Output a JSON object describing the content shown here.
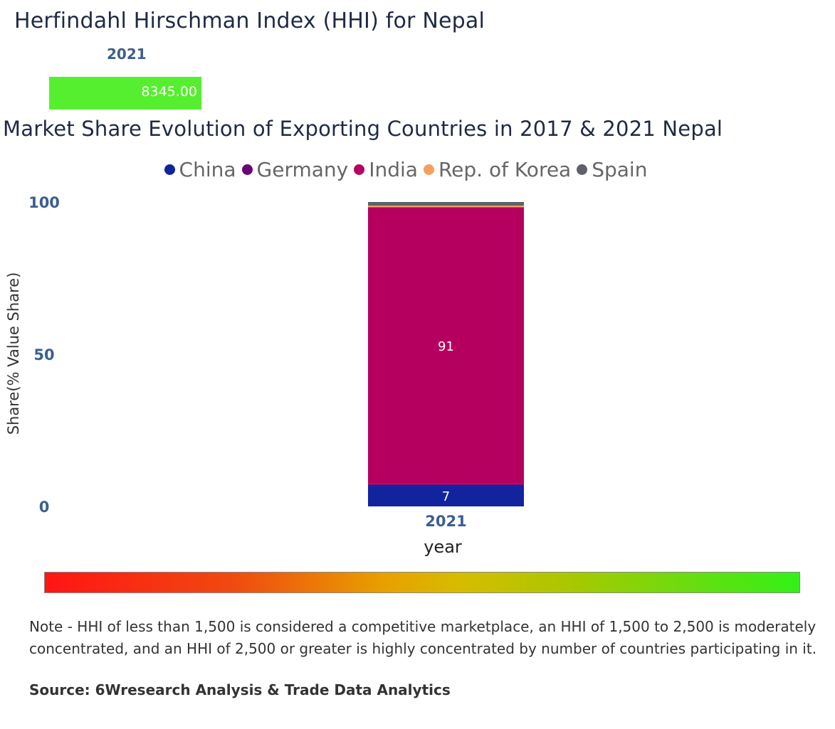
{
  "hhi": {
    "title": "Herfindahl Hirschman Index (HHI) for Nepal",
    "year": "2021",
    "value": "8345.00",
    "bar_color": "#56ef2f"
  },
  "market_share": {
    "title": "Market Share Evolution of Exporting Countries in 2017 & 2021 Nepal"
  },
  "chart_data": {
    "type": "bar",
    "stacked": true,
    "title": "Market Share Evolution of Exporting Countries in 2017 & 2021 Nepal",
    "xlabel": "year",
    "ylabel": "Share(% Value Share)",
    "categories": [
      "2021"
    ],
    "ylim": [
      0,
      100
    ],
    "yticks": [
      0,
      50,
      100
    ],
    "legend_position": "top",
    "series": [
      {
        "name": "China",
        "color": "#12239e",
        "values": [
          7
        ],
        "label": "7"
      },
      {
        "name": "Germany",
        "color": "#6b007b",
        "values": [
          0.3
        ],
        "label": ""
      },
      {
        "name": "India",
        "color": "#b5005f",
        "values": [
          91
        ],
        "label": "91"
      },
      {
        "name": "Rep. of Korea",
        "color": "#f5a05e",
        "values": [
          0.5
        ],
        "label": ""
      },
      {
        "name": "Spain",
        "color": "#5e6167",
        "values": [
          1.2
        ],
        "label": ""
      }
    ]
  },
  "hhi_scale": {
    "colors": [
      "#ff1414",
      "#e8a000",
      "#33f018"
    ]
  },
  "note": "Note - HHI of less than 1,500 is considered a competitive marketplace, an HHI of 1,500 to 2,500 is moderately concentrated, and an HHI of 2,500 or greater is highly concentrated by number of countries participating in it.",
  "source": "Source: 6Wresearch Analysis & Trade Data Analytics"
}
